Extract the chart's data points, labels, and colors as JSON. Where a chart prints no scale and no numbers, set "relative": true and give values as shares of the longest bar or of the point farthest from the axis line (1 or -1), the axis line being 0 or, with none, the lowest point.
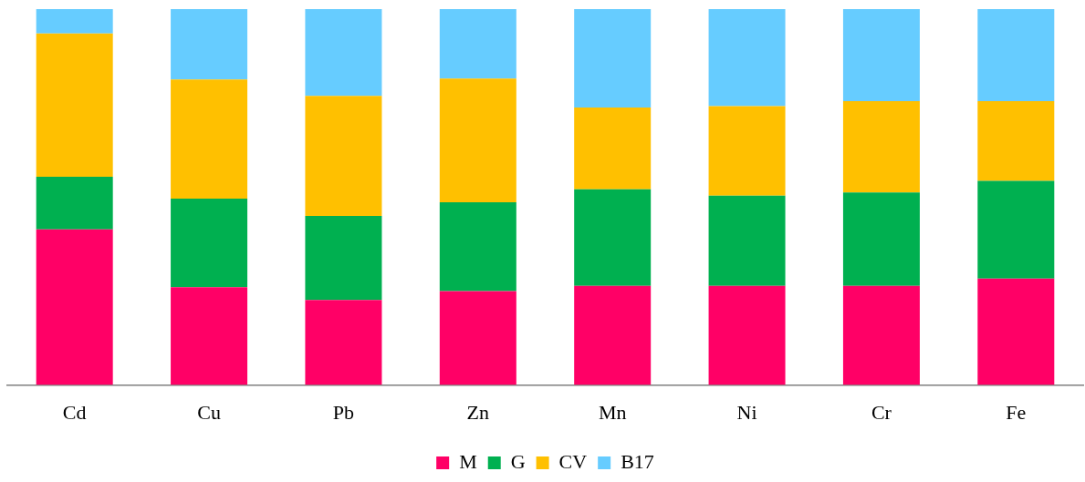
{
  "chart_data": {
    "type": "bar",
    "relative": true,
    "stacked": true,
    "legend": "bottom",
    "categories": [
      "Cd",
      "Cu",
      "Pb",
      "Zn",
      "Mn",
      "Ni",
      "Cr",
      "Fe"
    ],
    "series": [
      {
        "name": "M",
        "color": "#ff0066",
        "values": [
          0.414,
          0.26,
          0.226,
          0.25,
          0.264,
          0.264,
          0.264,
          0.283
        ]
      },
      {
        "name": "G",
        "color": "#00b050",
        "values": [
          0.14,
          0.236,
          0.224,
          0.236,
          0.257,
          0.24,
          0.248,
          0.26
        ]
      },
      {
        "name": "CV",
        "color": "#ffc000",
        "values": [
          0.381,
          0.317,
          0.319,
          0.329,
          0.217,
          0.238,
          0.243,
          0.212
        ]
      },
      {
        "name": "B17",
        "color": "#66ccff",
        "values": [
          0.065,
          0.187,
          0.231,
          0.185,
          0.262,
          0.258,
          0.245,
          0.245
        ]
      }
    ]
  }
}
